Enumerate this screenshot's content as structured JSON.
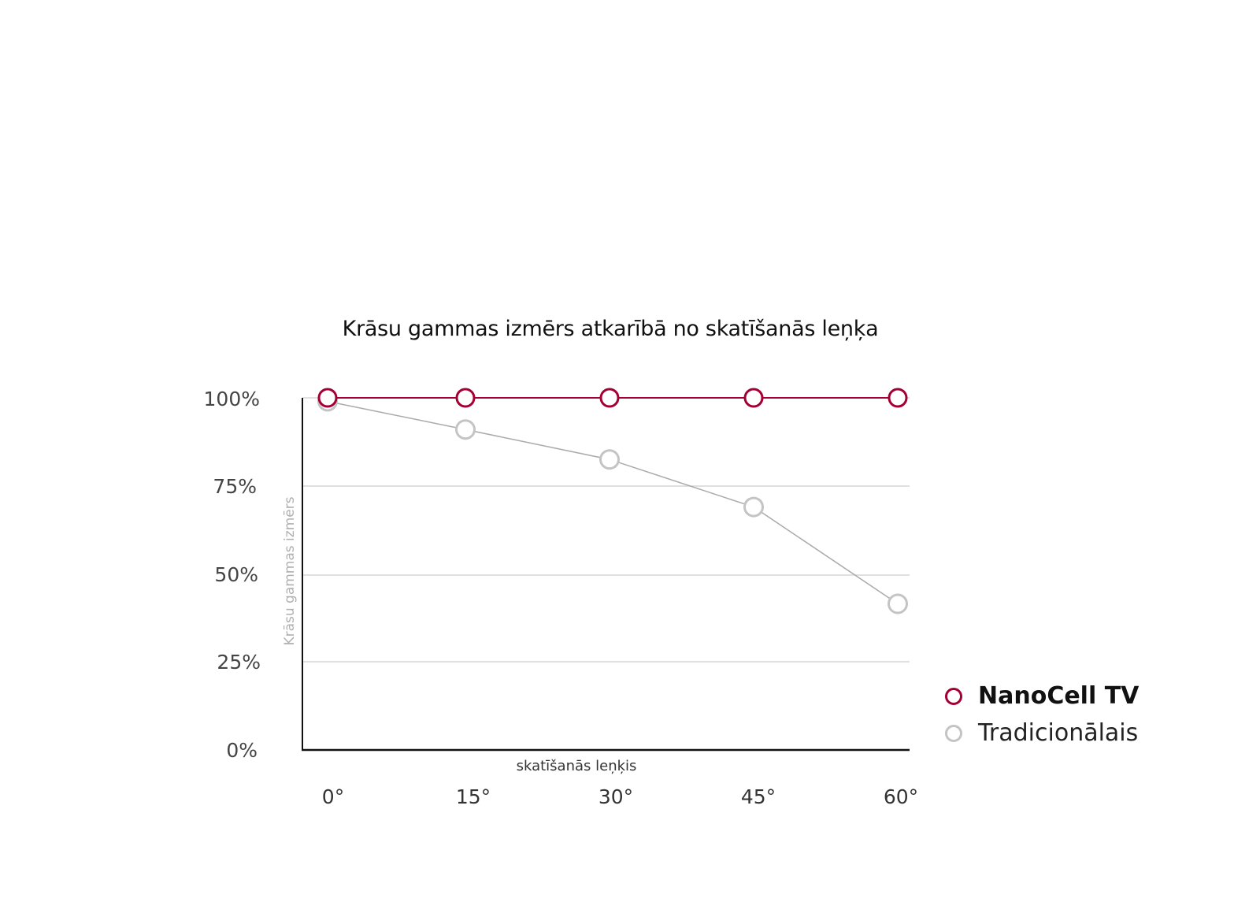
{
  "chart_data": {
    "type": "line",
    "title": "Krāsu gammas izmērs atkarībā no skatīšanās leņķa",
    "xlabel": "skatīšanās leņķis",
    "ylabel": "Krāsu gammas izmērs",
    "categories": [
      "0°",
      "15°",
      "30°",
      "45°",
      "60°"
    ],
    "y_ticks": [
      "100%",
      "75%",
      "50%",
      "25%",
      "0%"
    ],
    "ylim": [
      0,
      100
    ],
    "grid": true,
    "legend_position": "right-bottom",
    "series": [
      {
        "name": "NanoCell TV",
        "color": "#a50034",
        "values": [
          100,
          100,
          100,
          100,
          100
        ]
      },
      {
        "name": "Tradicionālais",
        "color": "#c4c4c4",
        "values": [
          99,
          91,
          82.5,
          69,
          41.5
        ]
      }
    ]
  },
  "legend": {
    "items": [
      {
        "label": "NanoCell TV"
      },
      {
        "label": "Tradicionālais"
      }
    ]
  }
}
